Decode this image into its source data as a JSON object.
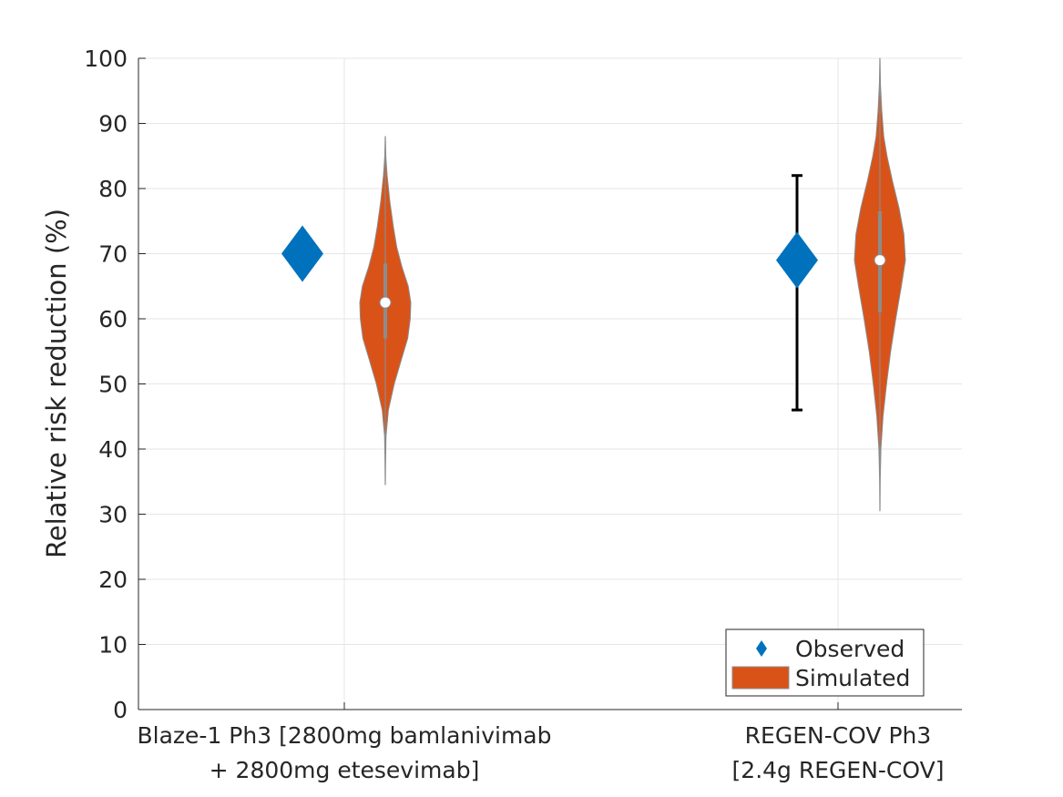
{
  "chart_data": {
    "type": "violin",
    "title": "",
    "xlabel": "",
    "ylabel": "Relative risk reduction (%)",
    "ylim": [
      0,
      100
    ],
    "yticks": [
      0,
      10,
      20,
      30,
      40,
      50,
      60,
      70,
      80,
      90,
      100
    ],
    "grid": true,
    "categories": [
      {
        "lines": [
          "Blaze-1 Ph3 [2800mg bamlanivimab",
          "+ 2800mg etesevimab]"
        ]
      },
      {
        "lines": [
          "REGEN-COV Ph3",
          "[2.4g REGEN-COV]"
        ]
      }
    ],
    "observed": [
      {
        "value": 70,
        "ci": null
      },
      {
        "value": 69,
        "ci": [
          46,
          82
        ]
      }
    ],
    "simulated": [
      {
        "median": 62.5,
        "q1": 57,
        "q3": 68.5,
        "min": 34.5,
        "max": 88,
        "density": [
          [
            34.5,
            0.0
          ],
          [
            38,
            0.01
          ],
          [
            42,
            0.03
          ],
          [
            46,
            0.12
          ],
          [
            50,
            0.35
          ],
          [
            54,
            0.65
          ],
          [
            57,
            0.88
          ],
          [
            60,
            0.98
          ],
          [
            62.5,
            1.0
          ],
          [
            65,
            0.9
          ],
          [
            68,
            0.65
          ],
          [
            71,
            0.45
          ],
          [
            74,
            0.32
          ],
          [
            78,
            0.18
          ],
          [
            82,
            0.07
          ],
          [
            85,
            0.02
          ],
          [
            88,
            0.0
          ]
        ]
      },
      {
        "median": 69,
        "q1": 61,
        "q3": 76.5,
        "min": 30.5,
        "max": 100,
        "density": [
          [
            30.5,
            0.0
          ],
          [
            35,
            0.01
          ],
          [
            40,
            0.04
          ],
          [
            45,
            0.12
          ],
          [
            50,
            0.26
          ],
          [
            55,
            0.42
          ],
          [
            60,
            0.62
          ],
          [
            65,
            0.84
          ],
          [
            69,
            1.0
          ],
          [
            73,
            0.94
          ],
          [
            77,
            0.75
          ],
          [
            81,
            0.5
          ],
          [
            85,
            0.28
          ],
          [
            88,
            0.15
          ],
          [
            92,
            0.07
          ],
          [
            96,
            0.02
          ],
          [
            100,
            0.0
          ]
        ]
      }
    ],
    "legend": {
      "placement": "bottom-right",
      "entries": [
        {
          "label": "Observed",
          "marker": "diamond",
          "color": "#0072BD"
        },
        {
          "label": "Simulated",
          "marker": "patch",
          "color": "#D95319"
        }
      ]
    },
    "colors": {
      "observed": "#0072BD",
      "simulated": "#D95319",
      "violin_edge": "#8c8c8c",
      "error_bar": "#000000",
      "grid": "#e6e6e6",
      "axis": "#262626"
    }
  }
}
